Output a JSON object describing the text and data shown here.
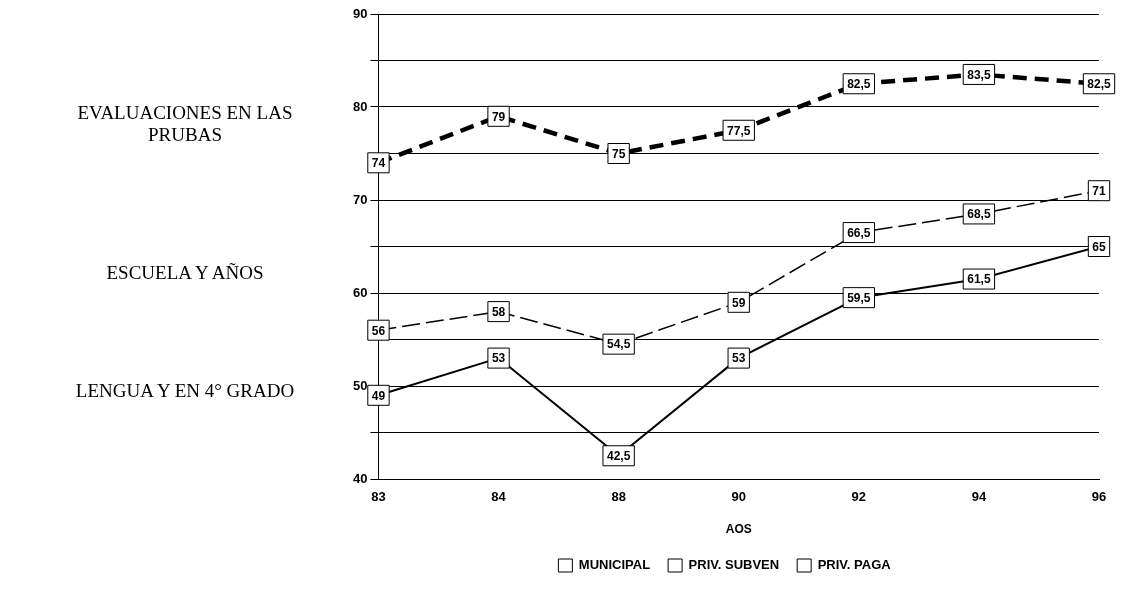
{
  "chart_data": {
    "type": "line",
    "title": "EVALUACIONES EN LAS PRUBAS",
    "annotations": [
      "ESCUELA Y AÑOS",
      "LENGUA Y EN 4° GRADO"
    ],
    "xlabel": "AOS",
    "categories": [
      "83",
      "84",
      "88",
      "90",
      "92",
      "94",
      "96"
    ],
    "ylim": [
      40,
      90
    ],
    "yticks": [
      40,
      {
        "value": 45,
        "label": null
      },
      50,
      {
        "value": 55,
        "label": null
      },
      60,
      {
        "value": 65,
        "label": null
      },
      70,
      {
        "value": 75,
        "label": null
      },
      80,
      {
        "value": 85,
        "label": null
      },
      90
    ],
    "grid": "y",
    "legend": "bottom",
    "marker": "square",
    "series": [
      {
        "name": "MUNICIPAL",
        "color": "#000000",
        "line_style": "solid",
        "values": [
          49,
          53,
          42.5,
          53,
          59.5,
          61.5,
          65
        ],
        "value_labels": [
          "49",
          "53",
          "42,5",
          "53",
          "59,5",
          "61,5",
          "65"
        ]
      },
      {
        "name": "PRIV. SUBVEN",
        "color": "#000000",
        "line_style": "dashed",
        "values": [
          56,
          58,
          54.5,
          59,
          66.5,
          68.5,
          71
        ],
        "value_labels": [
          "56",
          "58",
          "54,5",
          "59",
          "66,5",
          "68,5",
          "71"
        ]
      },
      {
        "name": "PRIV. PAGA",
        "color": "#000000",
        "line_style": "dashed",
        "values": [
          74,
          79,
          75,
          77.5,
          82.5,
          83.5,
          82.5
        ],
        "value_labels": [
          "74",
          "79",
          "75",
          "77,5",
          "82,5",
          "83,5",
          "82,5"
        ]
      }
    ]
  }
}
